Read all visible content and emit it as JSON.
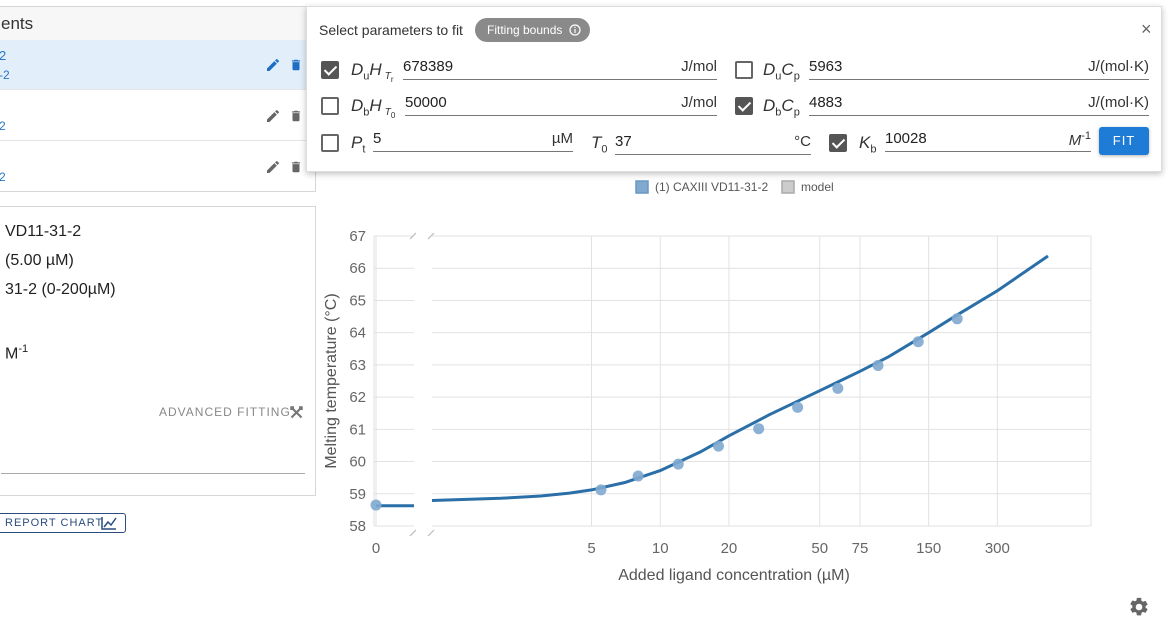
{
  "experiments": {
    "header_title": "ents",
    "rows": [
      {
        "line1": "2",
        "line2": "-2",
        "selected": true
      },
      {
        "line1": "",
        "line2": "2",
        "selected": false
      },
      {
        "line1": "",
        "line2": "2",
        "selected": false
      }
    ]
  },
  "info": {
    "lines": [
      "VD11-31-2",
      "(5.00 µM)",
      "31-2 (0-200µM)",
      "M"
    ],
    "lines_sup": "-1",
    "advanced_fitting_label": "ADVANCED FITTING",
    "report_chart_label": "REPORT CHART"
  },
  "fit_panel": {
    "title": "Select parameters to fit",
    "bounds_chip_label": "Fitting bounds",
    "close_label": "×",
    "fit_button_label": "FIT",
    "params": [
      {
        "id": "duHTr",
        "checked": true,
        "value": "678389",
        "unit": "J/mol"
      },
      {
        "id": "duCp",
        "checked": false,
        "value": "5963",
        "unit": "J/(mol·K)"
      },
      {
        "id": "dbHT0",
        "checked": false,
        "value": "50000",
        "unit": "J/mol"
      },
      {
        "id": "dbCp",
        "checked": true,
        "value": "4883",
        "unit": "J/(mol·K)"
      },
      {
        "id": "Pt",
        "checked": false,
        "value": "5",
        "unit": "µM"
      },
      {
        "id": "T0",
        "checked": null,
        "value": "37",
        "unit": "°C"
      },
      {
        "id": "Kb",
        "checked": true,
        "value": "10028",
        "unit": "M",
        "unit_sup": "-1"
      }
    ]
  },
  "chart_data": {
    "type": "scatter",
    "legend": [
      {
        "name": "(1) CAXIII VD11-31-2",
        "color": "#7fa9cf"
      },
      {
        "name": "model",
        "color": "#cccccc"
      }
    ],
    "legend_placement": "top-center",
    "xlabel": "Added ligand concentration (µM)",
    "ylabel": "Melting temperature (°C)",
    "x_scale": "log with broken axis at 0",
    "xlim": [
      0,
      500
    ],
    "ylim": [
      58,
      67
    ],
    "x_ticks": [
      "0",
      "5",
      "10",
      "20",
      "50",
      "75",
      "150",
      "300"
    ],
    "x_tick_values": [
      0,
      5,
      10,
      20,
      50,
      75,
      150,
      300
    ],
    "y_ticks": [
      "58",
      "59",
      "60",
      "61",
      "62",
      "63",
      "64",
      "65",
      "66",
      "67"
    ],
    "grid": true,
    "series": [
      {
        "name": "(1) CAXIII VD11-31-2",
        "kind": "points",
        "color": "#7fa9cf",
        "x": [
          0,
          5.5,
          8,
          12,
          18,
          27,
          40,
          60,
          90,
          135,
          200
        ],
        "y": [
          58.65,
          59.12,
          59.55,
          59.92,
          60.48,
          61.02,
          61.68,
          62.27,
          62.98,
          63.72,
          64.43
        ]
      },
      {
        "name": "model",
        "kind": "line",
        "color": "#2a6fa8",
        "x": [
          0,
          1,
          2,
          3,
          4,
          5,
          7,
          10,
          15,
          20,
          30,
          50,
          75,
          100,
          150,
          200,
          300,
          500
        ],
        "y": [
          58.63,
          58.79,
          58.86,
          58.93,
          59.02,
          59.12,
          59.35,
          59.72,
          60.3,
          60.8,
          61.45,
          62.2,
          62.8,
          63.25,
          64.0,
          64.55,
          65.3,
          66.38
        ]
      }
    ]
  }
}
